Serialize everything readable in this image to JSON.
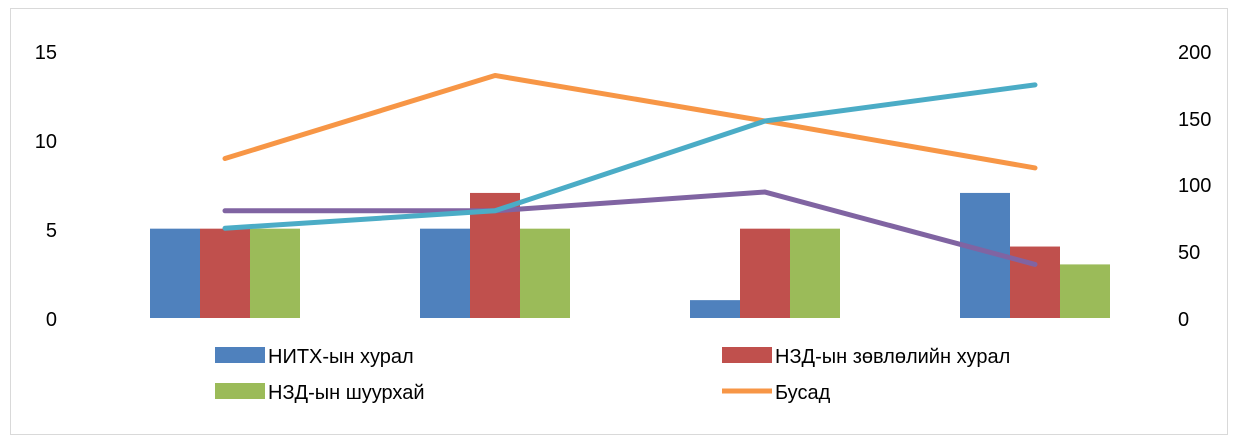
{
  "chart_data": {
    "type": "bar",
    "categories": [
      "",
      "",
      "",
      ""
    ],
    "series": [
      {
        "name": "НИТХ-ын хурал",
        "kind": "bar",
        "axis": "left",
        "color": "#4f81bd",
        "values": [
          5,
          5,
          1,
          7
        ]
      },
      {
        "name": "НЗД-ын зөвлөлийн хурал",
        "kind": "bar",
        "axis": "left",
        "color": "#c0504d",
        "values": [
          5,
          7,
          5,
          4
        ]
      },
      {
        "name": "НЗД-ын шуурхай",
        "kind": "bar",
        "axis": "left",
        "color": "#9bbb59",
        "values": [
          5,
          5,
          5,
          3
        ]
      },
      {
        "name": "Бусад",
        "kind": "line",
        "axis": "right",
        "color": "#f79646",
        "values": [
          119,
          181,
          147,
          112
        ]
      },
      {
        "name": "",
        "kind": "line",
        "axis": "right",
        "color": "#8064a2",
        "values": [
          80,
          80,
          94,
          40
        ]
      },
      {
        "name": "",
        "kind": "line",
        "axis": "right",
        "color": "#4bacc6",
        "values": [
          67,
          80,
          147,
          174
        ]
      }
    ],
    "y_left": {
      "min": 0,
      "max": 15,
      "ticks": [
        "0",
        "5",
        "10",
        "15"
      ]
    },
    "y_right": {
      "min": 0,
      "max": 200,
      "ticks": [
        "0",
        "50",
        "100",
        "150",
        "200"
      ]
    },
    "grid": false,
    "legend_position": "bottom",
    "legend_labels": [
      "НИТХ-ын хурал",
      "НЗД-ын зөвлөлийн хурал",
      "НЗД-ын шуурхай",
      "Бусад"
    ]
  }
}
